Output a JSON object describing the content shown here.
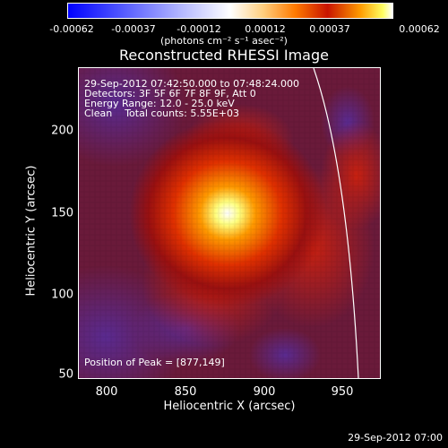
{
  "colorbar": {
    "ticks": [
      "-0.00062",
      "-0.00037",
      "-0.00012",
      "0.00012",
      "0.00037",
      "0.00062"
    ],
    "unit": "(photons cm⁻² s⁻¹ asec⁻²)"
  },
  "title": "Reconstructed RHESSI Image",
  "info": {
    "line1": "29-Sep-2012 07:42:50.000 to 07:48:24.000",
    "line2": "Detectors: 3F 5F 6F 7F 8F 9F, Att 0",
    "line3": "Energy Range: 12.0 - 25.0 keV",
    "line4": "Clean    Total counts: 5.55E+03",
    "peak": "Position of Peak = [877,149]"
  },
  "axes": {
    "xlabel": "Heliocentric X (arcsec)",
    "ylabel": "Heliocentric Y (arcsec)",
    "xticks": [
      "800",
      "850",
      "900",
      "950"
    ],
    "yticks": [
      "200",
      "150",
      "100",
      "50"
    ]
  },
  "timestamp": "29-Sep-2012 07:00"
}
